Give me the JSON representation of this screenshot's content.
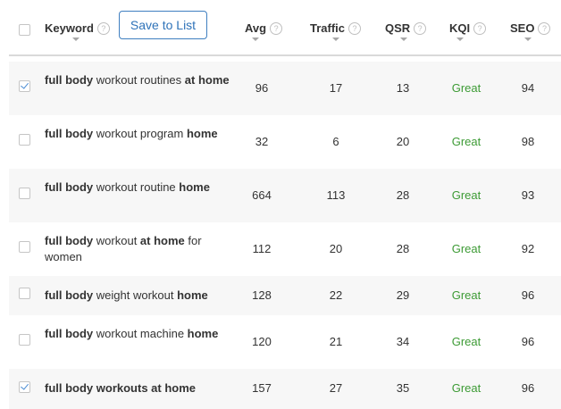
{
  "header": {
    "keyword_label": "Keyword",
    "save_button": "Save to List",
    "avg_label": "Avg",
    "traffic_label": "Traffic",
    "qsr_label": "QSR",
    "kqi_label": "KQI",
    "seo_label": "SEO",
    "help_glyph": "?"
  },
  "colors": {
    "accent_blue": "#2f73b9",
    "kqi_green": "#3d9b35",
    "row_alt": "#f7f7f7"
  },
  "rows": [
    {
      "checked": true,
      "keyword_parts": [
        {
          "text": "full body",
          "bold": true
        },
        {
          "text": " workout routines ",
          "bold": false
        },
        {
          "text": "at home",
          "bold": true
        }
      ],
      "avg": "96",
      "traffic": "17",
      "qsr": "13",
      "kqi": "Great",
      "seo": "94"
    },
    {
      "checked": false,
      "keyword_parts": [
        {
          "text": "full body",
          "bold": true
        },
        {
          "text": " workout program ",
          "bold": false
        },
        {
          "text": "home",
          "bold": true
        }
      ],
      "avg": "32",
      "traffic": "6",
      "qsr": "20",
      "kqi": "Great",
      "seo": "98"
    },
    {
      "checked": false,
      "keyword_parts": [
        {
          "text": "full body",
          "bold": true
        },
        {
          "text": " workout routine ",
          "bold": false
        },
        {
          "text": "home",
          "bold": true
        }
      ],
      "avg": "664",
      "traffic": "113",
      "qsr": "28",
      "kqi": "Great",
      "seo": "93"
    },
    {
      "checked": false,
      "keyword_parts": [
        {
          "text": "full body",
          "bold": true
        },
        {
          "text": " workout ",
          "bold": false
        },
        {
          "text": "at home",
          "bold": true
        },
        {
          "text": " for women",
          "bold": false
        }
      ],
      "avg": "112",
      "traffic": "20",
      "qsr": "28",
      "kqi": "Great",
      "seo": "92"
    },
    {
      "checked": false,
      "keyword_parts": [
        {
          "text": "full body",
          "bold": true
        },
        {
          "text": " weight workout ",
          "bold": false
        },
        {
          "text": "home",
          "bold": true
        }
      ],
      "avg": "128",
      "traffic": "22",
      "qsr": "29",
      "kqi": "Great",
      "seo": "96"
    },
    {
      "checked": false,
      "keyword_parts": [
        {
          "text": "full body",
          "bold": true
        },
        {
          "text": " workout machine ",
          "bold": false
        },
        {
          "text": "home",
          "bold": true
        }
      ],
      "avg": "120",
      "traffic": "21",
      "qsr": "34",
      "kqi": "Great",
      "seo": "96"
    },
    {
      "checked": true,
      "keyword_parts": [
        {
          "text": "full body workouts at home",
          "bold": true
        }
      ],
      "avg": "157",
      "traffic": "27",
      "qsr": "35",
      "kqi": "Great",
      "seo": "96"
    }
  ]
}
